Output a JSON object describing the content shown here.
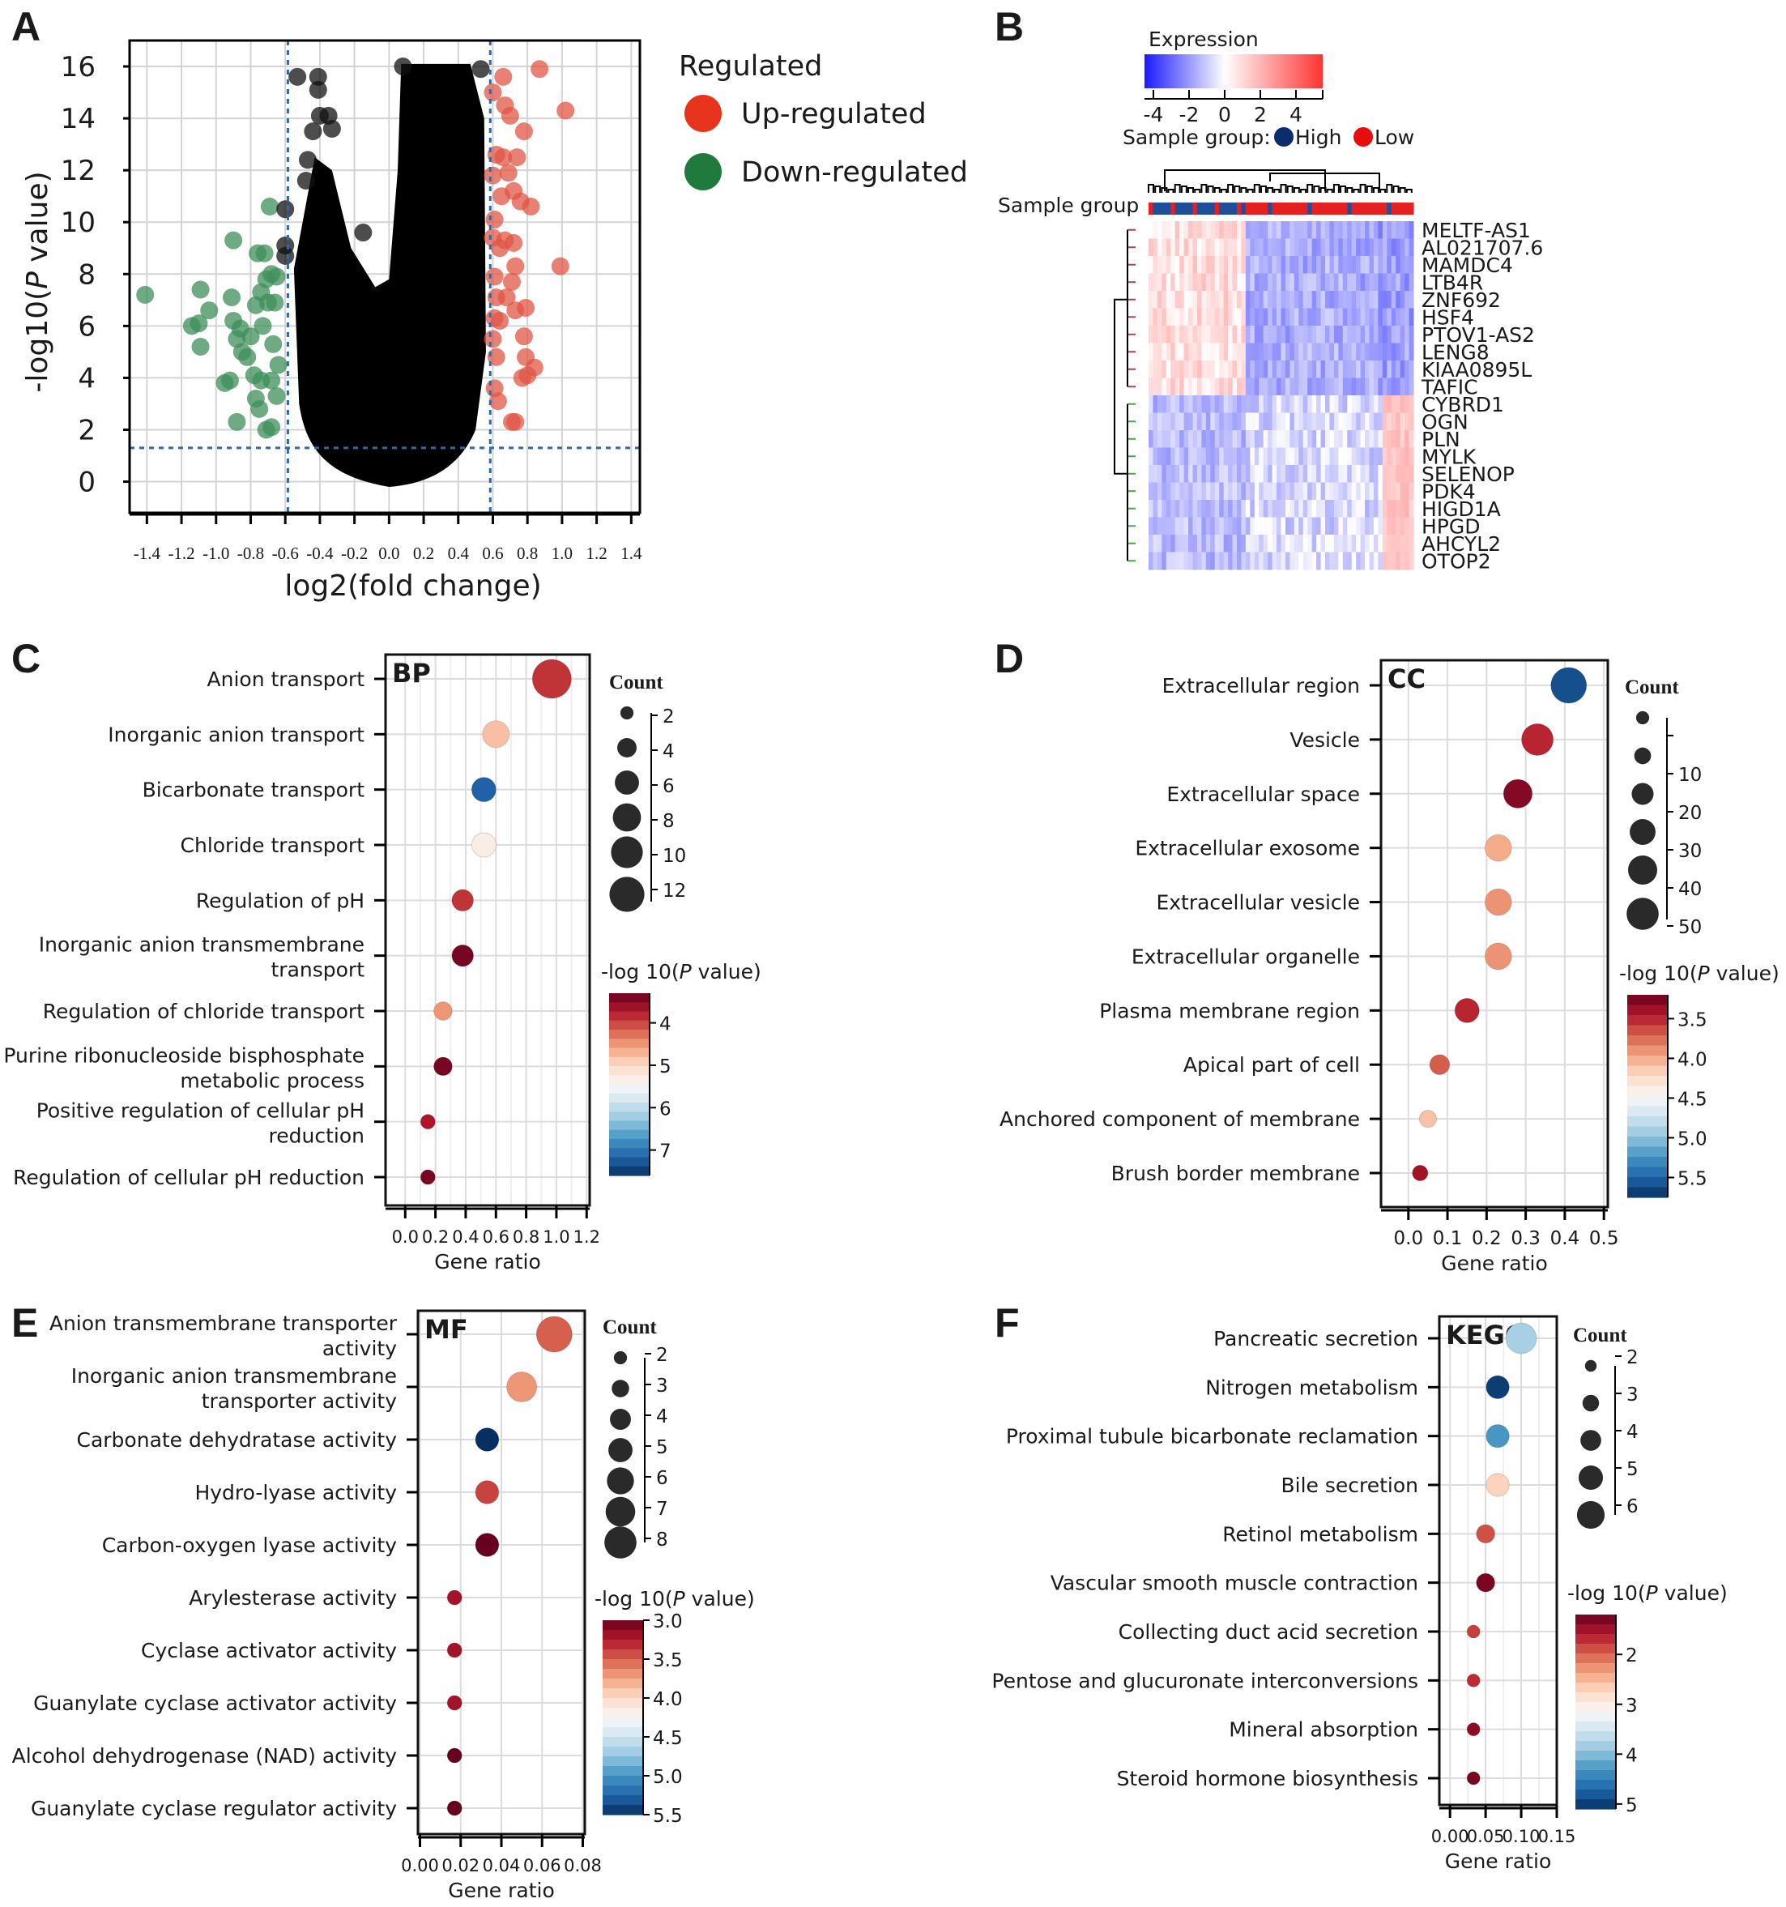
{
  "figure": {
    "panel_labels": [
      "A",
      "B",
      "C",
      "D",
      "E",
      "F"
    ]
  },
  "chart_data": [
    {
      "id": "A",
      "type": "scatter",
      "title": "",
      "xlabel": "log2(fold change)",
      "ylabel": "-log10(P value)",
      "xlim": [
        -1.5,
        1.45
      ],
      "ylim": [
        -1.2,
        17
      ],
      "xticks": [
        -1.4,
        -1.2,
        -1.0,
        -0.8,
        -0.6,
        -0.4,
        -0.2,
        0.0,
        0.2,
        0.4,
        0.6,
        0.8,
        1.0,
        1.2,
        1.4
      ],
      "xtick_labels": [
        "-1.4",
        "-1.2",
        "-1.0",
        "-0.8",
        "-0.6",
        "-0.4",
        "-0.2",
        "0.0",
        "0.2",
        "0.4",
        "0.6",
        "0.8",
        "1.0",
        "1.2",
        "1.4"
      ],
      "yticks": [
        0,
        2,
        4,
        6,
        8,
        10,
        12,
        14,
        16
      ],
      "ytick_labels": [
        "0",
        "2",
        "4",
        "6",
        "8",
        "10",
        "12",
        "14",
        "16"
      ],
      "thresholds": {
        "fold_change": [
          -0.585,
          0.585
        ],
        "p_value_line": 1.3
      },
      "legend": {
        "title": "Regulated",
        "position": "right",
        "items": [
          {
            "label": "Up-regulated",
            "color": "#e8341c"
          },
          {
            "label": "Down-regulated",
            "color": "#1f7a3e"
          }
        ]
      },
      "colors": {
        "up": "#e05545",
        "down": "#3d8f5a",
        "ns": "#111111",
        "threshold": "#2e6aa6"
      },
      "series": [
        {
          "name": "Up-regulated",
          "points": [
            [
              0.87,
              15.9
            ],
            [
              1.02,
              14.3
            ],
            [
              0.6,
              15.0
            ],
            [
              0.66,
              15.6
            ],
            [
              0.67,
              14.5
            ],
            [
              0.7,
              14.1
            ],
            [
              0.78,
              13.5
            ],
            [
              0.62,
              12.6
            ],
            [
              0.66,
              12.5
            ],
            [
              0.74,
              12.5
            ],
            [
              0.6,
              11.8
            ],
            [
              0.69,
              11.9
            ],
            [
              0.65,
              11.0
            ],
            [
              0.72,
              11.2
            ],
            [
              0.76,
              10.8
            ],
            [
              0.82,
              10.6
            ],
            [
              0.61,
              10.1
            ],
            [
              0.6,
              9.4
            ],
            [
              0.64,
              9.0
            ],
            [
              0.67,
              9.3
            ],
            [
              0.72,
              9.2
            ],
            [
              0.73,
              8.3
            ],
            [
              0.99,
              8.3
            ],
            [
              0.61,
              7.9
            ],
            [
              0.71,
              7.7
            ],
            [
              0.62,
              7.1
            ],
            [
              0.68,
              7.1
            ],
            [
              0.73,
              6.6
            ],
            [
              0.79,
              6.7
            ],
            [
              0.61,
              6.3
            ],
            [
              0.6,
              5.5
            ],
            [
              0.78,
              5.6
            ],
            [
              0.62,
              4.8
            ],
            [
              0.79,
              4.8
            ],
            [
              0.84,
              4.4
            ],
            [
              0.77,
              4.0
            ],
            [
              0.8,
              4.1
            ],
            [
              0.61,
              3.6
            ],
            [
              0.63,
              3.1
            ],
            [
              0.73,
              2.3
            ],
            [
              0.71,
              2.3
            ],
            [
              0.64,
              6.2
            ]
          ]
        },
        {
          "name": "Down-regulated",
          "points": [
            [
              -1.41,
              7.2
            ],
            [
              -1.09,
              7.4
            ],
            [
              -1.04,
              6.6
            ],
            [
              -1.14,
              6.0
            ],
            [
              -1.1,
              6.1
            ],
            [
              -1.09,
              5.2
            ],
            [
              -0.9,
              9.3
            ],
            [
              -0.76,
              8.8
            ],
            [
              -0.72,
              8.8
            ],
            [
              -0.69,
              10.6
            ],
            [
              -0.91,
              7.1
            ],
            [
              -0.9,
              6.2
            ],
            [
              -0.88,
              5.5
            ],
            [
              -0.86,
              5.9
            ],
            [
              -0.85,
              5.0
            ],
            [
              -0.82,
              4.8
            ],
            [
              -0.8,
              5.6
            ],
            [
              -0.77,
              6.8
            ],
            [
              -0.74,
              7.3
            ],
            [
              -0.71,
              7.8
            ],
            [
              -0.68,
              8.0
            ],
            [
              -0.65,
              7.9
            ],
            [
              -0.7,
              6.9
            ],
            [
              -0.66,
              6.9
            ],
            [
              -0.73,
              6.0
            ],
            [
              -0.67,
              5.3
            ],
            [
              -0.95,
              3.8
            ],
            [
              -0.92,
              3.9
            ],
            [
              -0.78,
              4.1
            ],
            [
              -0.74,
              3.9
            ],
            [
              -0.64,
              4.5
            ],
            [
              -0.68,
              3.9
            ],
            [
              -0.77,
              3.2
            ],
            [
              -0.75,
              2.8
            ],
            [
              -0.65,
              3.3
            ],
            [
              -0.88,
              2.3
            ],
            [
              -0.71,
              2.0
            ],
            [
              -0.68,
              2.1
            ]
          ]
        },
        {
          "name": "Not significant",
          "description": "dense cloud of thousands of points between -0.6 and 0.58 with outliers",
          "points": [
            [
              -0.53,
              15.6
            ],
            [
              -0.41,
              15.6
            ],
            [
              -0.41,
              15.1
            ],
            [
              -0.4,
              14.1
            ],
            [
              -0.35,
              14.1
            ],
            [
              -0.33,
              13.6
            ],
            [
              -0.44,
              13.5
            ],
            [
              -0.47,
              12.4
            ],
            [
              -0.48,
              11.6
            ],
            [
              -0.15,
              9.6
            ],
            [
              -0.6,
              10.5
            ],
            [
              -0.6,
              9.1
            ],
            [
              -0.6,
              8.7
            ],
            [
              0.08,
              16.0
            ],
            [
              0.53,
              15.9
            ]
          ]
        }
      ]
    },
    {
      "id": "B",
      "type": "heatmap",
      "title": "Expression",
      "colorbar": {
        "ticks": [
          "-4",
          "-2",
          "0",
          "2",
          "4"
        ],
        "range": [
          -4.5,
          5.5
        ],
        "low_color": "#1a1aff",
        "mid_color": "#ffffff",
        "high_color": "#ff3333"
      },
      "sample_group_legend": {
        "label": "Sample group:",
        "items": [
          {
            "label": "High",
            "color": "#0b2d6e"
          },
          {
            "label": "Low",
            "color": "#e80c0c"
          }
        ]
      },
      "sample_group_row_label": "Sample group",
      "rows": [
        "MELTF-AS1",
        "AL021707.6",
        "MAMDC4",
        "LTB4R",
        "ZNF692",
        "HSF4",
        "PTOV1-AS2",
        "LENG8",
        "KIAA0895L",
        "TAFIC",
        "CYBRD1",
        "OGN",
        "PLN",
        "MYLK",
        "SELENOP",
        "PDK4",
        "HIGD1A",
        "HPGD",
        "AHCYL2",
        "OTOP2"
      ],
      "row_clusters": [
        {
          "rows": 10,
          "color": "#b0405a"
        },
        {
          "rows": 10,
          "color": "#3fae3f"
        }
      ],
      "pattern": "first 10 genes: pale red in High group, blue in Low group; last 10 genes: blue in High group, red in rightmost Low samples",
      "n_columns": 60,
      "group_split_fraction": 0.37
    },
    {
      "id": "C",
      "type": "scatter",
      "subtype": "bubble",
      "panel_tag": "BP",
      "xlabel": "Gene ratio",
      "xlim": [
        -0.13,
        1.22
      ],
      "xticks": [
        0.0,
        0.2,
        0.4,
        0.6,
        0.8,
        1.0,
        1.2
      ],
      "xtick_labels": [
        "0.0",
        "0.2",
        "0.4",
        "0.6",
        "0.8",
        "1.0",
        "1.2"
      ],
      "categories": [
        [
          "Anion transport"
        ],
        [
          "Inorganic anion transport"
        ],
        [
          "Bicarbonate transport"
        ],
        [
          "Chloride transport"
        ],
        [
          "Regulation of pH"
        ],
        [
          "Inorganic anion transmembrane",
          "transport"
        ],
        [
          "Regulation of chloride transport"
        ],
        [
          "Purine ribonucleoside bisphosphate",
          "metabolic process"
        ],
        [
          "Positive regulation of cellular pH",
          "reduction"
        ],
        [
          "Regulation of cellular pH reduction"
        ]
      ],
      "gene_ratio": [
        0.97,
        0.6,
        0.52,
        0.52,
        0.38,
        0.38,
        0.25,
        0.25,
        0.15,
        0.15
      ],
      "count": [
        12,
        6,
        5,
        5,
        4,
        4,
        3,
        3,
        2,
        2
      ],
      "neg_log10_p": [
        3.9,
        4.8,
        7.2,
        5.3,
        3.9,
        3.4,
        4.5,
        3.4,
        3.7,
        3.4
      ],
      "size_legend": {
        "title": "Count",
        "values": [
          2,
          4,
          6,
          8,
          10,
          12
        ],
        "labels": [
          "2",
          "4",
          "6",
          "8",
          "10",
          "12"
        ]
      },
      "color_legend": {
        "title": "-log 10(P value)",
        "range": [
          3.3,
          7.6
        ],
        "ticks": [
          4,
          5,
          6,
          7
        ],
        "labels": [
          "4",
          "5",
          "6",
          "7"
        ]
      }
    },
    {
      "id": "D",
      "type": "scatter",
      "subtype": "bubble",
      "panel_tag": "CC",
      "xlabel": "Gene ratio",
      "xlim": [
        -0.07,
        0.51
      ],
      "xticks": [
        0.0,
        0.1,
        0.2,
        0.3,
        0.4,
        0.5
      ],
      "xtick_labels": [
        "0.0",
        "0.1",
        "0.2",
        "0.3",
        "0.4",
        "0.5"
      ],
      "categories": [
        [
          "Extracellular region"
        ],
        [
          "Vesicle"
        ],
        [
          "Extracellular space"
        ],
        [
          "Extracellular exosome"
        ],
        [
          "Extracellular vesicle"
        ],
        [
          "Extracellular organelle"
        ],
        [
          "Plasma membrane region"
        ],
        [
          "Apical part of cell"
        ],
        [
          "Anchored component of membrane"
        ],
        [
          "Brush border membrane"
        ]
      ],
      "gene_ratio": [
        0.41,
        0.33,
        0.28,
        0.23,
        0.23,
        0.23,
        0.15,
        0.08,
        0.05,
        0.03
      ],
      "count": [
        50,
        38,
        30,
        25,
        25,
        25,
        20,
        12,
        8,
        6
      ],
      "neg_log10_p": [
        5.6,
        3.5,
        3.3,
        4.0,
        3.9,
        3.9,
        3.5,
        3.7,
        4.1,
        3.4
      ],
      "size_legend": {
        "title": "Count",
        "values": [
          5,
          10,
          20,
          30,
          40,
          50
        ],
        "labels": [
          "",
          "10",
          "20",
          "30",
          "40",
          "50"
        ]
      },
      "color_legend": {
        "title": "-log 10(P value)",
        "range": [
          3.2,
          5.75
        ],
        "ticks": [
          3.5,
          4.0,
          4.5,
          5.0,
          5.5
        ],
        "labels": [
          "3.5",
          "4.0",
          "4.5",
          "5.0",
          "5.5"
        ]
      }
    },
    {
      "id": "E",
      "type": "scatter",
      "subtype": "bubble",
      "panel_tag": "MF",
      "xlabel": "Gene ratio",
      "xlim": [
        -0.001,
        0.081
      ],
      "xticks": [
        0.0,
        0.02,
        0.04,
        0.06,
        0.08
      ],
      "xtick_labels": [
        "0.00",
        "0.02",
        "0.04",
        "0.06",
        "0.08"
      ],
      "categories": [
        [
          "Anion transmembrane transporter",
          "activity"
        ],
        [
          "Inorganic anion transmembrane",
          "transporter activity"
        ],
        [
          "Carbonate dehydratase activity"
        ],
        [
          "Hydro-lyase activity"
        ],
        [
          "Carbon-oxygen lyase activity"
        ],
        [
          "Arylesterase activity"
        ],
        [
          "Cyclase activator activity"
        ],
        [
          "Guanylate cyclase activator activity"
        ],
        [
          "Alcohol dehydrogenase (NAD) activity"
        ],
        [
          "Guanylate cyclase regulator activity"
        ]
      ],
      "gene_ratio": [
        0.066,
        0.05,
        0.033,
        0.033,
        0.033,
        0.017,
        0.017,
        0.017,
        0.017,
        0.017
      ],
      "count": [
        8,
        6,
        4,
        4,
        4,
        2,
        2,
        2,
        2,
        2
      ],
      "neg_log10_p": [
        3.5,
        3.7,
        5.5,
        3.4,
        3.0,
        3.2,
        3.2,
        3.2,
        3.0,
        3.0
      ],
      "size_legend": {
        "title": "Count",
        "values": [
          2,
          3,
          4,
          5,
          6,
          7,
          8
        ],
        "labels": [
          "2",
          "3",
          "4",
          "5",
          "6",
          "7",
          "8"
        ]
      },
      "color_legend": {
        "title": "-log 10(P value)",
        "range": [
          3.0,
          5.5
        ],
        "ticks": [
          3.0,
          3.5,
          4.0,
          4.5,
          5.0,
          5.5
        ],
        "labels": [
          "3.0",
          "3.5",
          "4.0",
          "4.5",
          "5.0",
          "5.5"
        ]
      }
    },
    {
      "id": "F",
      "type": "scatter",
      "subtype": "bubble",
      "panel_tag": "KEGG",
      "xlabel": "Gene ratio",
      "xlim": [
        -0.015,
        0.15
      ],
      "xticks": [
        0.0,
        0.05,
        0.1,
        0.15
      ],
      "xtick_labels": [
        "0.00",
        "0.05",
        "0.10",
        "0.15"
      ],
      "categories": [
        [
          "Pancreatic secretion"
        ],
        [
          "Nitrogen metabolism"
        ],
        [
          "Proximal tubule bicarbonate reclamation"
        ],
        [
          "Bile secretion"
        ],
        [
          "Retinol metabolism"
        ],
        [
          "Vascular smooth muscle contraction"
        ],
        [
          "Collecting duct acid secretion"
        ],
        [
          "Pentose and glucuronate interconversions"
        ],
        [
          "Mineral absorption"
        ],
        [
          "Steroid hormone biosynthesis"
        ]
      ],
      "gene_ratio": [
        0.1,
        0.067,
        0.067,
        0.067,
        0.05,
        0.05,
        0.033,
        0.033,
        0.033,
        0.033
      ],
      "count": [
        6,
        4,
        4,
        4,
        3,
        3,
        2,
        2,
        2,
        2
      ],
      "neg_log10_p": [
        3.8,
        5.0,
        4.3,
        2.7,
        1.9,
        1.3,
        1.8,
        1.7,
        1.4,
        1.3
      ],
      "size_legend": {
        "title": "Count",
        "values": [
          2,
          3,
          4,
          5,
          6
        ],
        "labels": [
          "2",
          "3",
          "4",
          "5",
          "6"
        ]
      },
      "color_legend": {
        "title": "-log 10(P value)",
        "range": [
          1.2,
          5.1
        ],
        "ticks": [
          2,
          3,
          4,
          5
        ],
        "labels": [
          "2",
          "3",
          "4",
          "5"
        ]
      }
    }
  ]
}
